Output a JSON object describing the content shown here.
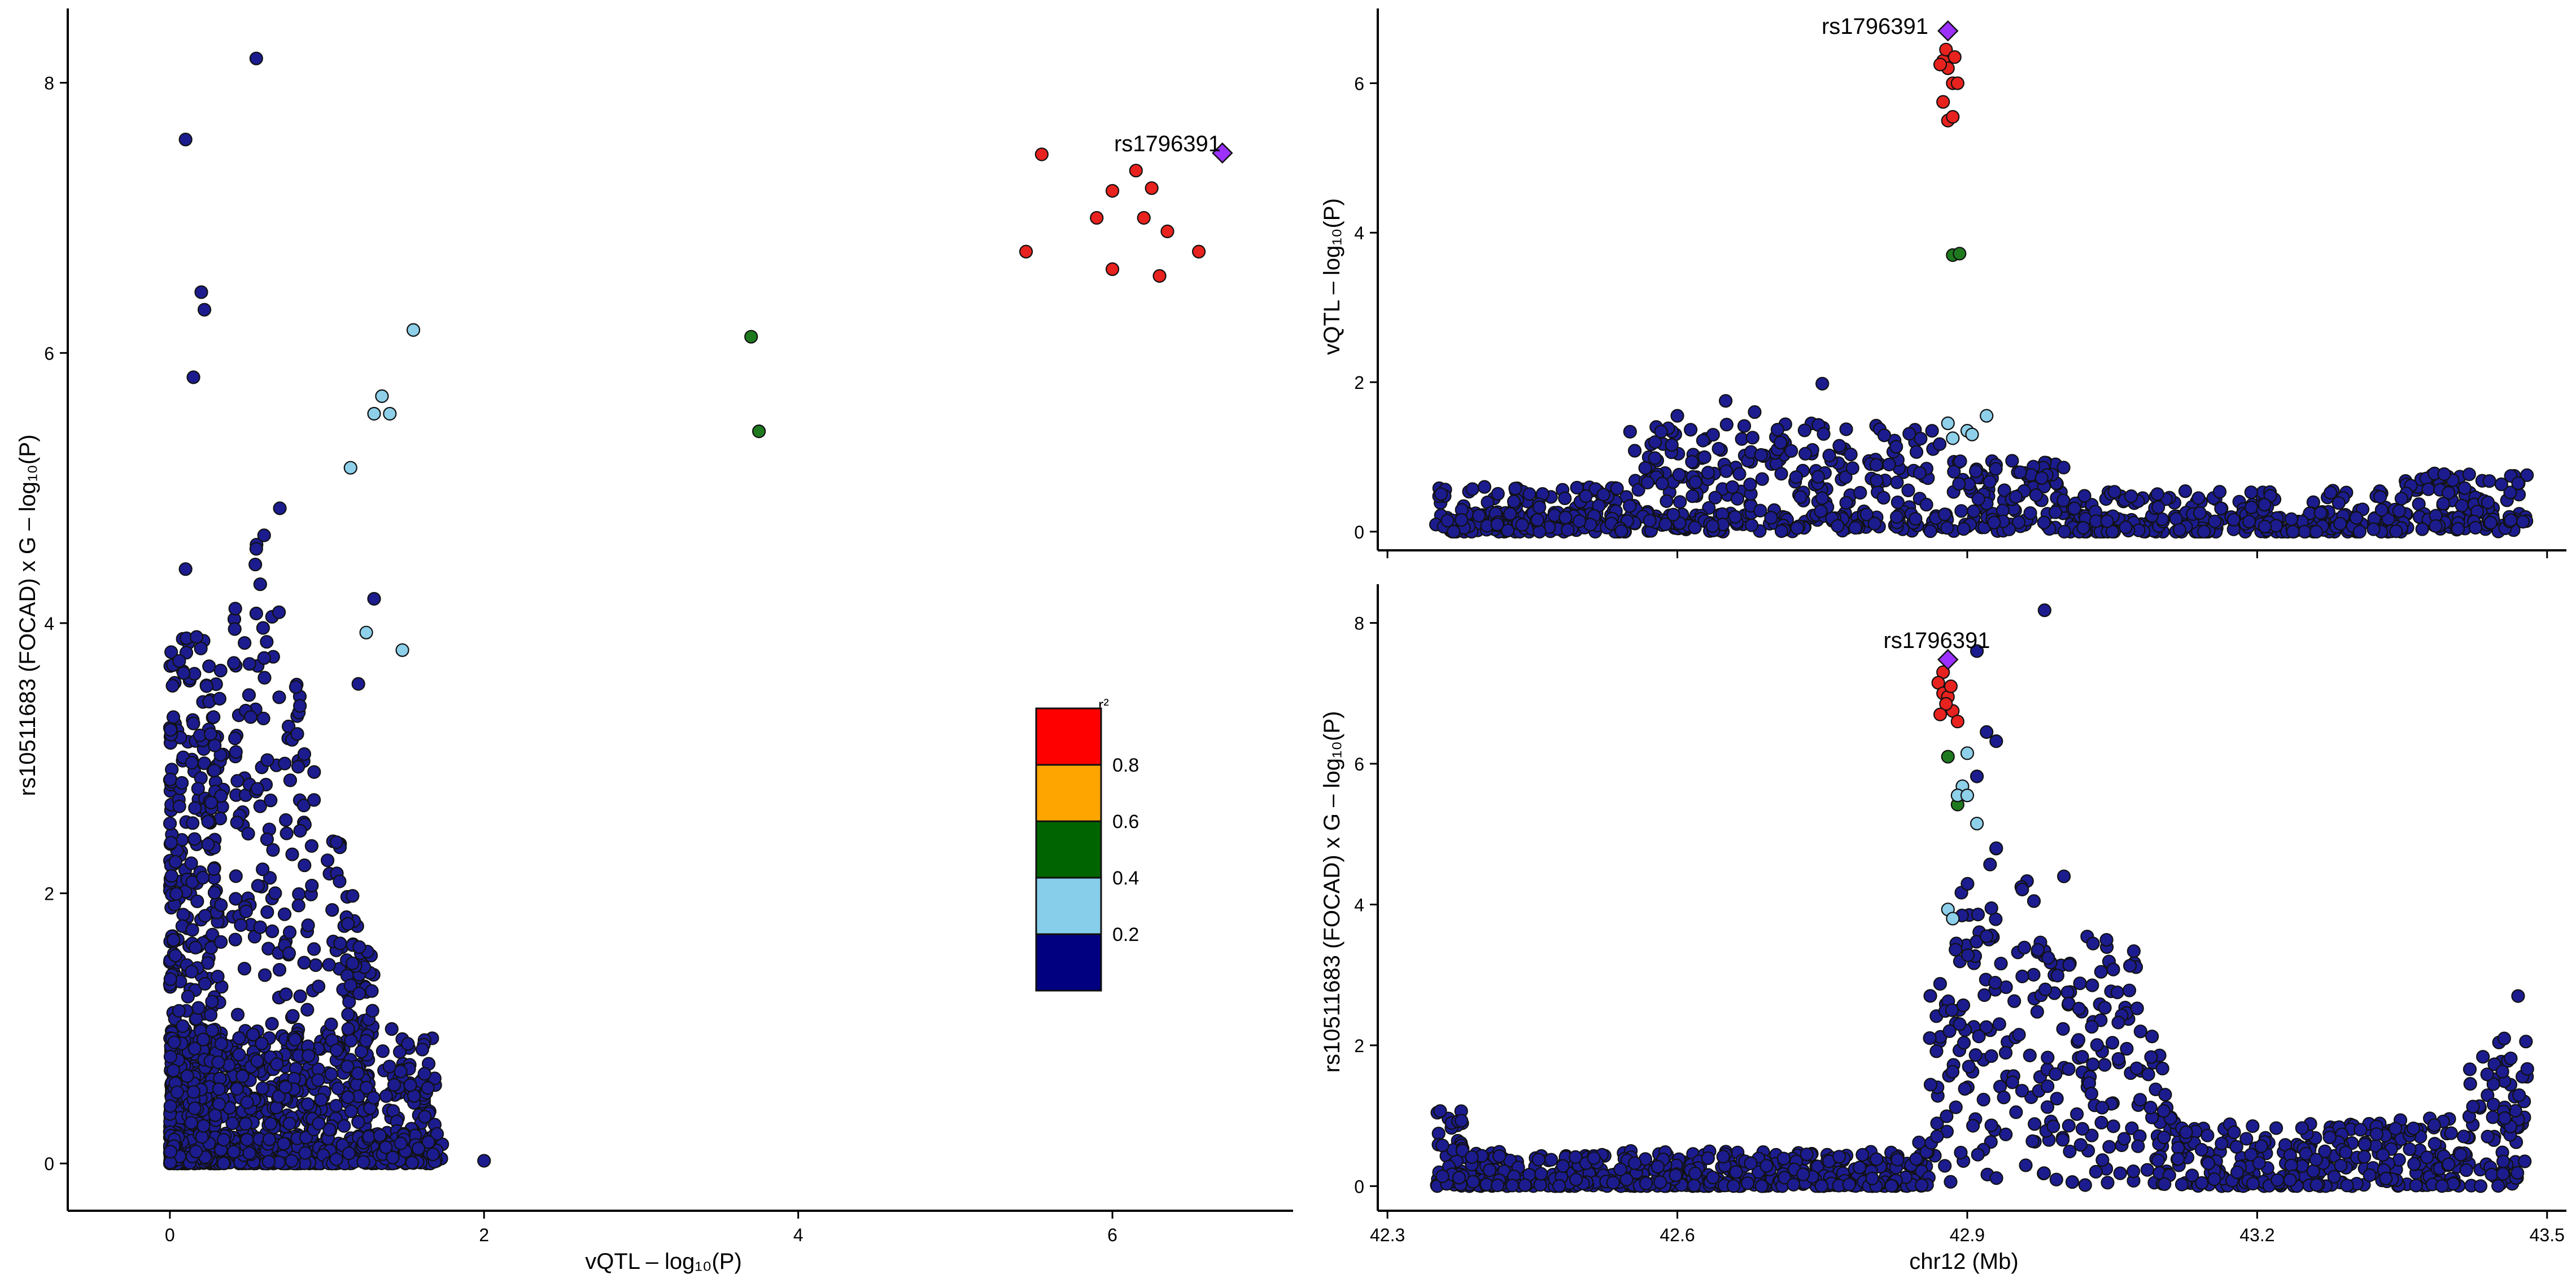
{
  "chart_data": [
    {
      "id": "left",
      "type": "scatter",
      "title": "",
      "xlabel": "vQTL – log₁₀(P)",
      "ylabel": "rs10511683 (FOCAD) x G – log₁₀(P)",
      "xlim": [
        -0.65,
        7.15
      ],
      "ylim": [
        -0.35,
        8.55
      ],
      "xticks": [
        0,
        2,
        4,
        6
      ],
      "yticks": [
        0,
        2,
        4,
        6,
        8
      ],
      "lead": {
        "label": "rs1796391",
        "x": 6.7,
        "y": 7.48,
        "color": "#9b30ff"
      },
      "highlight_points": [
        {
          "x": 5.55,
          "y": 7.47,
          "ld": "red"
        },
        {
          "x": 5.9,
          "y": 7.0,
          "ld": "red"
        },
        {
          "x": 6.0,
          "y": 7.2,
          "ld": "red"
        },
        {
          "x": 6.15,
          "y": 7.35,
          "ld": "red"
        },
        {
          "x": 6.2,
          "y": 7.0,
          "ld": "red"
        },
        {
          "x": 6.25,
          "y": 7.22,
          "ld": "red"
        },
        {
          "x": 6.35,
          "y": 6.9,
          "ld": "red"
        },
        {
          "x": 5.45,
          "y": 6.75,
          "ld": "red"
        },
        {
          "x": 6.0,
          "y": 6.62,
          "ld": "red"
        },
        {
          "x": 6.3,
          "y": 6.57,
          "ld": "red"
        },
        {
          "x": 6.55,
          "y": 6.75,
          "ld": "red"
        },
        {
          "x": 3.7,
          "y": 6.12,
          "ld": "green"
        },
        {
          "x": 3.75,
          "y": 5.42,
          "ld": "green"
        },
        {
          "x": 1.55,
          "y": 6.17,
          "ld": "lightblue"
        },
        {
          "x": 1.35,
          "y": 5.68,
          "ld": "lightblue"
        },
        {
          "x": 1.3,
          "y": 5.55,
          "ld": "lightblue"
        },
        {
          "x": 1.4,
          "y": 5.55,
          "ld": "lightblue"
        },
        {
          "x": 1.15,
          "y": 5.15,
          "ld": "lightblue"
        },
        {
          "x": 1.25,
          "y": 3.93,
          "ld": "lightblue"
        },
        {
          "x": 1.48,
          "y": 3.8,
          "ld": "lightblue"
        }
      ],
      "background": {
        "ld": "navy",
        "x_range": [
          0,
          2.0
        ],
        "y_range": [
          0,
          8.2
        ],
        "dense_region": "x 0-1.7, y 0-1"
      },
      "legend": {
        "title": "r²",
        "placement": "lower-right",
        "entries": [
          {
            "color": "#ff0000",
            "boundary": ""
          },
          {
            "color": "#ffa500",
            "boundary": "0.8"
          },
          {
            "color": "#006400",
            "boundary": "0.6"
          },
          {
            "color": "#87ceeb",
            "boundary": "0.4"
          },
          {
            "color": "#000080",
            "boundary": "0.2"
          }
        ]
      }
    },
    {
      "id": "top-right",
      "type": "scatter",
      "title": "",
      "xlabel": "",
      "ylabel": "vQTL – log₁₀(P)",
      "xlim": [
        42.29,
        43.52
      ],
      "ylim": [
        -0.25,
        7.0
      ],
      "xticks": [
        42.3,
        42.6,
        42.9,
        43.2,
        43.5
      ],
      "yticks": [
        0,
        2,
        4,
        6
      ],
      "lead": {
        "label": "rs1796391",
        "x": 42.88,
        "y": 6.7,
        "color": "#9b30ff"
      },
      "highlight_points": [
        {
          "x": 42.875,
          "y": 6.3,
          "ld": "red"
        },
        {
          "x": 42.88,
          "y": 6.2,
          "ld": "red"
        },
        {
          "x": 42.878,
          "y": 6.45,
          "ld": "red"
        },
        {
          "x": 42.885,
          "y": 6.0,
          "ld": "red"
        },
        {
          "x": 42.89,
          "y": 6.0,
          "ld": "red"
        },
        {
          "x": 42.875,
          "y": 5.75,
          "ld": "red"
        },
        {
          "x": 42.88,
          "y": 5.5,
          "ld": "red"
        },
        {
          "x": 42.885,
          "y": 5.55,
          "ld": "red"
        },
        {
          "x": 42.872,
          "y": 6.25,
          "ld": "red"
        },
        {
          "x": 42.887,
          "y": 6.35,
          "ld": "red"
        },
        {
          "x": 42.885,
          "y": 3.7,
          "ld": "green"
        },
        {
          "x": 42.892,
          "y": 3.72,
          "ld": "green"
        },
        {
          "x": 42.88,
          "y": 1.45,
          "ld": "lightblue"
        },
        {
          "x": 42.885,
          "y": 1.25,
          "ld": "lightblue"
        },
        {
          "x": 42.9,
          "y": 1.35,
          "ld": "lightblue"
        },
        {
          "x": 42.905,
          "y": 1.3,
          "ld": "lightblue"
        },
        {
          "x": 42.92,
          "y": 1.55,
          "ld": "lightblue"
        }
      ],
      "background": {
        "ld": "navy",
        "x_range": [
          42.35,
          43.5
        ],
        "y_range": [
          0,
          2.0
        ]
      }
    },
    {
      "id": "bottom-right",
      "type": "scatter",
      "title": "",
      "xlabel": "chr12 (Mb)",
      "ylabel": "rs10511683 (FOCAD) x G – log₁₀(P)",
      "xlim": [
        42.29,
        43.52
      ],
      "ylim": [
        -0.35,
        8.55
      ],
      "xticks": [
        42.3,
        42.6,
        42.9,
        43.2,
        43.5
      ],
      "yticks": [
        0,
        2,
        4,
        6,
        8
      ],
      "lead": {
        "label": "rs1796391",
        "x": 42.88,
        "y": 7.48,
        "color": "#9b30ff"
      },
      "highlight_points": [
        {
          "x": 42.875,
          "y": 7.3,
          "ld": "red"
        },
        {
          "x": 42.87,
          "y": 7.15,
          "ld": "red"
        },
        {
          "x": 42.875,
          "y": 7.0,
          "ld": "red"
        },
        {
          "x": 42.88,
          "y": 6.95,
          "ld": "red"
        },
        {
          "x": 42.885,
          "y": 6.75,
          "ld": "red"
        },
        {
          "x": 42.89,
          "y": 6.6,
          "ld": "red"
        },
        {
          "x": 42.878,
          "y": 6.85,
          "ld": "red"
        },
        {
          "x": 42.872,
          "y": 6.7,
          "ld": "red"
        },
        {
          "x": 42.883,
          "y": 7.1,
          "ld": "red"
        },
        {
          "x": 42.88,
          "y": 6.1,
          "ld": "green"
        },
        {
          "x": 42.89,
          "y": 5.42,
          "ld": "green"
        },
        {
          "x": 42.9,
          "y": 6.15,
          "ld": "lightblue"
        },
        {
          "x": 42.895,
          "y": 5.68,
          "ld": "lightblue"
        },
        {
          "x": 42.89,
          "y": 5.55,
          "ld": "lightblue"
        },
        {
          "x": 42.9,
          "y": 5.55,
          "ld": "lightblue"
        },
        {
          "x": 42.91,
          "y": 5.15,
          "ld": "lightblue"
        },
        {
          "x": 42.88,
          "y": 3.93,
          "ld": "lightblue"
        },
        {
          "x": 42.885,
          "y": 3.8,
          "ld": "lightblue"
        }
      ],
      "background": {
        "ld": "navy",
        "x_range": [
          42.35,
          43.5
        ],
        "y_range": [
          0,
          8.2
        ]
      }
    }
  ],
  "colors": {
    "navy": "#1c1c8f",
    "red": "#e8221e",
    "green": "#1f7a1f",
    "lightblue": "#8ed0ea",
    "lead": "#9b30ff"
  }
}
